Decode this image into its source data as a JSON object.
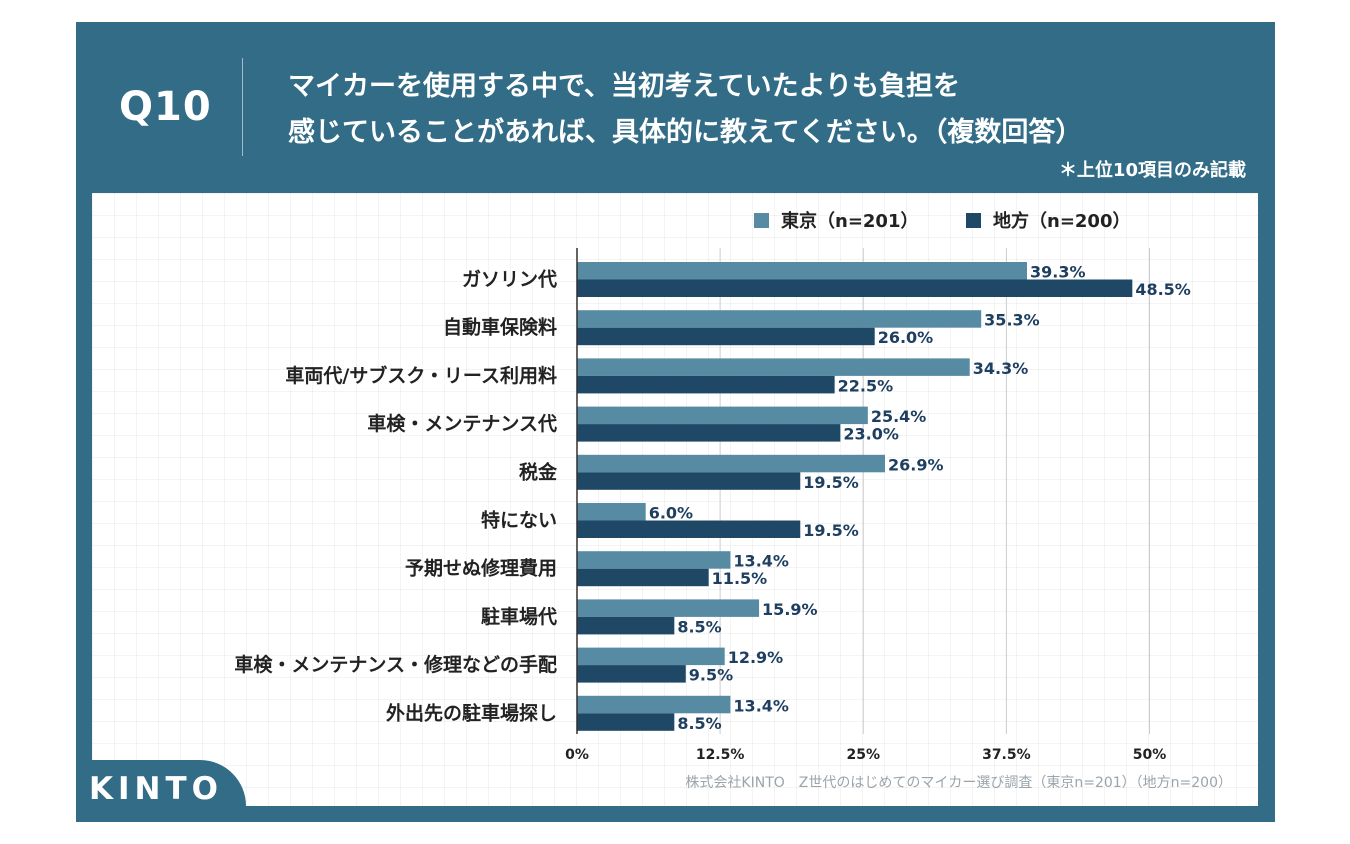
{
  "header": {
    "badge": "Q10",
    "title_line1": "マイカーを使用する中で、当初考えていたよりも負担を",
    "title_line2": "感じていることがあれば、具体的に教えてください。（複数回答）",
    "note": "＊上位10項目のみ記載"
  },
  "footer": {
    "logo": "KINTO",
    "source": "株式会社KINTO　Z世代のはじめてのマイカー選び調査（東京n=201）（地方n=200）"
  },
  "colors": {
    "frame": "#336c86",
    "tokyo": "#578ba3",
    "chiho": "#1f4766",
    "value_text": "#1e3f60"
  },
  "chart_data": {
    "type": "bar",
    "orientation": "horizontal",
    "categories": [
      "ガソリン代",
      "自動車保険料",
      "車両代/サブスク・リース利用料",
      "車検・メンテナンス代",
      "税金",
      "特にない",
      "予期せぬ修理費用",
      "駐車場代",
      "車検・メンテナンス・修理などの手配",
      "外出先の駐車場探し"
    ],
    "series": [
      {
        "name": "東京（n=201）",
        "values": [
          39.3,
          35.3,
          34.3,
          25.4,
          26.9,
          6.0,
          13.4,
          15.9,
          12.9,
          13.4
        ]
      },
      {
        "name": "地方（n=200）",
        "values": [
          48.5,
          26.0,
          22.5,
          23.0,
          19.5,
          19.5,
          11.5,
          8.5,
          9.5,
          8.5
        ]
      }
    ],
    "value_labels": {
      "tokyo": [
        "39.3%",
        "35.3%",
        "34.3%",
        "25.4%",
        "26.9%",
        "6.0%",
        "13.4%",
        "15.9%",
        "12.9%",
        "13.4%"
      ],
      "chiho": [
        "48.5%",
        "26.0%",
        "22.5%",
        "23.0%",
        "19.5%",
        "19.5%",
        "11.5%",
        "8.5%",
        "9.5%",
        "8.5%"
      ]
    },
    "x_ticks": [
      0,
      12.5,
      25,
      37.5,
      50
    ],
    "x_tick_labels": [
      "0%",
      "12.5%",
      "25%",
      "37.5%",
      "50%"
    ],
    "xlim": [
      0,
      50
    ],
    "grid": true,
    "legend_position": "top-right"
  }
}
